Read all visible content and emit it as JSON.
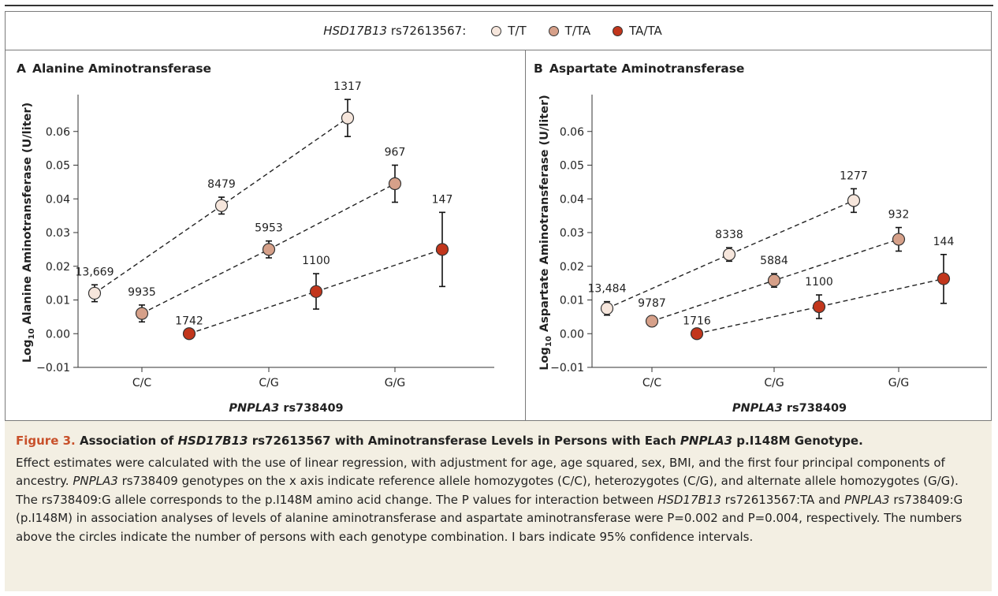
{
  "legend": {
    "title_gene": "HSD17B13",
    "title_snp": "rs72613567:",
    "items": [
      {
        "label": "T/T",
        "color": "#f6e6dc"
      },
      {
        "label": "T/TA",
        "color": "#d6a089"
      },
      {
        "label": "TA/TA",
        "color": "#c2361c"
      }
    ]
  },
  "chart_data": [
    {
      "type": "scatter",
      "panel_letter": "A",
      "title": "Alanine Aminotransferase",
      "ylabel_prefix": "Log",
      "ylabel_sub": "10",
      "ylabel_rest": " Alanine Aminotransferase (U/liter)",
      "xlabel_gene": "PNPLA3",
      "xlabel_snp": " rs738409",
      "categories": [
        "C/C",
        "C/G",
        "G/G"
      ],
      "ylim": [
        -0.01,
        0.07
      ],
      "yticks": [
        -0.01,
        0.0,
        0.01,
        0.02,
        0.03,
        0.04,
        0.05,
        0.06
      ],
      "ytick_labels": [
        "−0.01",
        "0.00",
        "0.01",
        "0.02",
        "0.03",
        "0.04",
        "0.05",
        "0.06"
      ],
      "series": [
        {
          "name": "T/T",
          "values": [
            0.012,
            0.038,
            0.064
          ],
          "ci_low": [
            0.0095,
            0.0355,
            0.0585
          ],
          "ci_high": [
            0.0145,
            0.0405,
            0.0695
          ],
          "counts": [
            "13,669",
            "8479",
            "1317"
          ]
        },
        {
          "name": "T/TA",
          "values": [
            0.006,
            0.025,
            0.0445
          ],
          "ci_low": [
            0.0035,
            0.0225,
            0.039
          ],
          "ci_high": [
            0.0085,
            0.0275,
            0.05
          ],
          "counts": [
            "9935",
            "5953",
            "967"
          ]
        },
        {
          "name": "TA/TA",
          "values": [
            0.0,
            0.0125,
            0.025
          ],
          "ci_low": [
            0.0,
            0.0073,
            0.014
          ],
          "ci_high": [
            0.0,
            0.0178,
            0.036
          ],
          "counts": [
            "1742",
            "1100",
            "147"
          ]
        }
      ]
    },
    {
      "type": "scatter",
      "panel_letter": "B",
      "title": "Aspartate Aminotransferase",
      "ylabel_prefix": "Log",
      "ylabel_sub": "10",
      "ylabel_rest": " Aspartate Aminotransferase (U/liter)",
      "xlabel_gene": "PNPLA3",
      "xlabel_snp": " rs738409",
      "categories": [
        "C/C",
        "C/G",
        "G/G"
      ],
      "ylim": [
        -0.01,
        0.07
      ],
      "yticks": [
        -0.01,
        0.0,
        0.01,
        0.02,
        0.03,
        0.04,
        0.05,
        0.06
      ],
      "ytick_labels": [
        "−0.01",
        "0.00",
        "0.01",
        "0.02",
        "0.03",
        "0.04",
        "0.05",
        "0.06"
      ],
      "series": [
        {
          "name": "T/T",
          "values": [
            0.0075,
            0.0235,
            0.0395
          ],
          "ci_low": [
            0.0055,
            0.0215,
            0.036
          ],
          "ci_high": [
            0.0095,
            0.0255,
            0.043
          ],
          "counts": [
            "13,484",
            "8338",
            "1277"
          ]
        },
        {
          "name": "T/TA",
          "values": [
            0.0037,
            0.0158,
            0.028
          ],
          "ci_low": [
            0.0022,
            0.0138,
            0.0245
          ],
          "ci_high": [
            0.0052,
            0.0178,
            0.0315
          ],
          "counts": [
            "9787",
            "5884",
            "932"
          ]
        },
        {
          "name": "TA/TA",
          "values": [
            0.0,
            0.008,
            0.0163
          ],
          "ci_low": [
            0.0,
            0.0045,
            0.009
          ],
          "ci_high": [
            0.0,
            0.0115,
            0.0235
          ],
          "counts": [
            "1716",
            "1100",
            "144"
          ]
        }
      ]
    }
  ],
  "caption": {
    "fig_label": "Figure 3.",
    "title_1": " Association of ",
    "title_gene1": "HSD17B13",
    "title_2": " rs72613567 with Aminotransferase Levels in Persons with Each ",
    "title_gene2": "PNPLA3",
    "title_3": " p.I148M Genotype.",
    "body_1": "Effect estimates were calculated with the use of linear regression, with adjustment for age, age squared, sex, BMI, and the first four principal components of ancestry. ",
    "body_gene1": "PNPLA3",
    "body_2": " rs738409 genotypes on the x axis indicate reference allele homozygotes (C/C), heterozygotes (C/G), and alternate allele homozygotes (G/G). The rs738409:G allele corresponds to the p.I148M amino acid change. The P values for interaction between ",
    "body_gene2": "HSD17B13",
    "body_3": " rs72613567:TA and ",
    "body_gene3": "PNPLA3",
    "body_4": " rs738409:G (p.I148M) in association analyses of levels of alanine aminotransferase and aspartate aminotransferase were P=0.002 and P=0.004, respectively. The numbers above the circles indicate the number of persons with each genotype combination. I bars indicate 95% confidence intervals."
  }
}
